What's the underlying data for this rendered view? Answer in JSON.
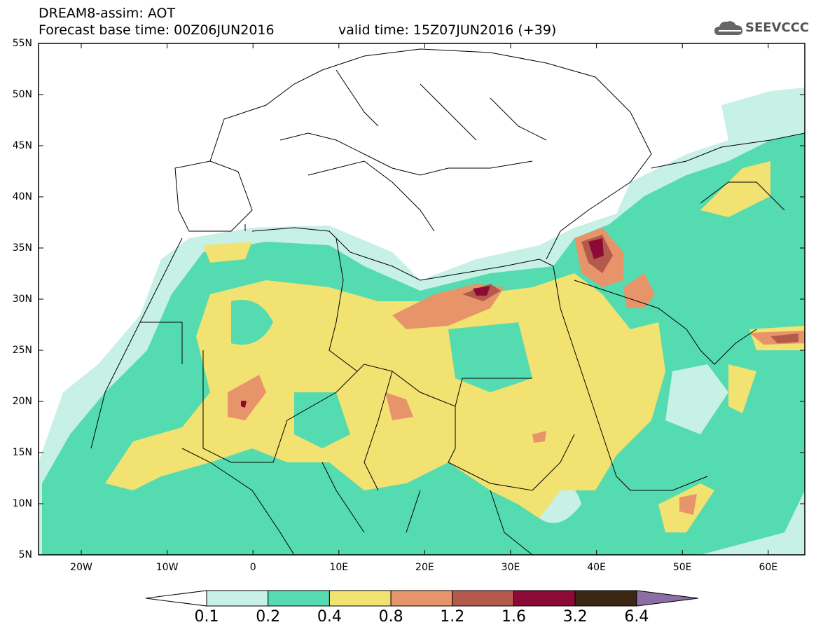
{
  "header": {
    "line1": "DREAM8-assim: AOT",
    "line2": "Forecast base time: 00Z06JUN2016",
    "valid_time": "valid time: 15Z07JUN2016 (+39)",
    "logo_text": "SEEVCCC"
  },
  "map": {
    "lat_labels": [
      "55N",
      "50N",
      "45N",
      "40N",
      "35N",
      "30N",
      "25N",
      "20N",
      "15N",
      "10N",
      "5N"
    ],
    "lon_labels": [
      "20W",
      "10W",
      "0",
      "10E",
      "20E",
      "30E",
      "40E",
      "50E",
      "60E"
    ]
  },
  "colorbar": {
    "ticks": [
      "0.1",
      "0.2",
      "0.4",
      "0.8",
      "1.2",
      "1.6",
      "3.2",
      "6.4"
    ],
    "colors": [
      "#ffffff",
      "#c7f0e6",
      "#55dbb0",
      "#f2e272",
      "#e8946a",
      "#b45a4c",
      "#8c0a35",
      "#3c2714",
      "#8c6ea5"
    ]
  }
}
